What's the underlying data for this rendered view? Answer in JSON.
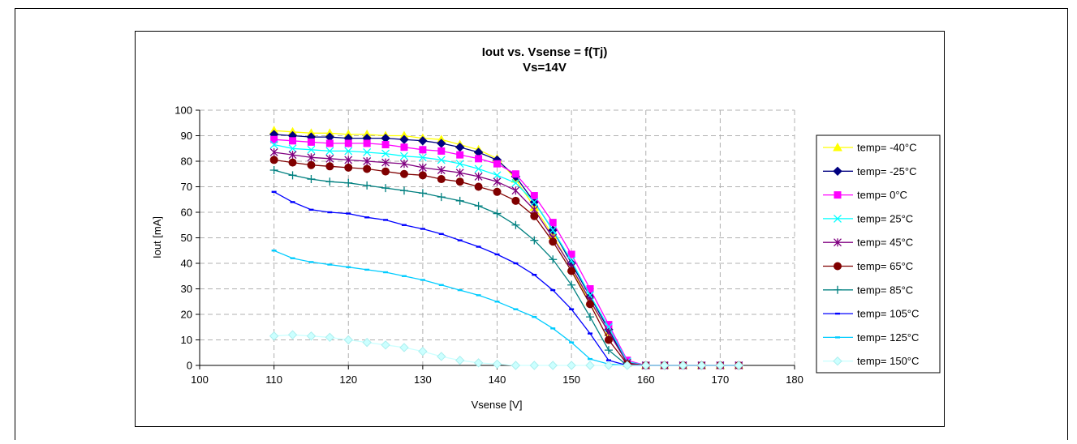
{
  "chart_data": {
    "type": "line",
    "title": "Iout vs. Vsense = f(Tj)",
    "subtitle": "Vs=14V",
    "xlabel": "Vsense [V]",
    "ylabel": "Iout [mA]",
    "xlim": [
      100,
      180
    ],
    "ylim": [
      0,
      100
    ],
    "xticks": [
      100,
      110,
      120,
      130,
      140,
      150,
      160,
      170,
      180
    ],
    "yticks": [
      0,
      10,
      20,
      30,
      40,
      50,
      60,
      70,
      80,
      90,
      100
    ],
    "grid": true,
    "legend_position": "right",
    "x": [
      110,
      112.5,
      115,
      117.5,
      120,
      122.5,
      125,
      127.5,
      130,
      132.5,
      135,
      137.5,
      140,
      142.5,
      145,
      147.5,
      150,
      152.5,
      155,
      157.5,
      160,
      162.5,
      165,
      167.5,
      170,
      172.5
    ],
    "series": [
      {
        "name": "temp= -40°C",
        "color": "#ffff00",
        "marker": "triangle",
        "values": [
          92,
          91.5,
          91,
          91,
          90.5,
          90.5,
          90,
          90,
          89,
          88.5,
          86.5,
          84.5,
          81,
          73,
          62,
          51,
          38,
          25,
          13,
          1,
          0,
          0,
          0,
          0,
          0,
          0
        ]
      },
      {
        "name": "temp= -25°C",
        "color": "#000080",
        "marker": "diamond",
        "values": [
          90.5,
          90,
          89.5,
          89.5,
          89,
          89,
          89,
          88.5,
          88,
          87,
          85.5,
          83.5,
          80.5,
          74,
          64,
          53,
          40,
          27,
          14,
          1,
          0,
          0,
          0,
          0,
          0,
          0
        ]
      },
      {
        "name": "temp= 0°C",
        "color": "#ff00ff",
        "marker": "square",
        "values": [
          88.5,
          88,
          87.5,
          87,
          87,
          87,
          86.5,
          85.5,
          84.5,
          84,
          82.5,
          81,
          79,
          75,
          66.5,
          56,
          43.5,
          30,
          16,
          2,
          0,
          0,
          0,
          0,
          0,
          0
        ]
      },
      {
        "name": "temp= 25°C",
        "color": "#00ffff",
        "marker": "x",
        "values": [
          86.5,
          85,
          84.5,
          84,
          84,
          83.5,
          83,
          82,
          81.5,
          80.5,
          79,
          77,
          74.5,
          71.5,
          64,
          53,
          41,
          27.5,
          15,
          1.5,
          0,
          0,
          0,
          0,
          0,
          0
        ]
      },
      {
        "name": "temp= 45°C",
        "color": "#800080",
        "marker": "star",
        "values": [
          83.5,
          82.5,
          81.5,
          81,
          80.5,
          80,
          79.5,
          79,
          77.5,
          76.5,
          75.5,
          74,
          72,
          68.5,
          61,
          50,
          38.5,
          25.5,
          13,
          1,
          0,
          0,
          0,
          0,
          0,
          0
        ]
      },
      {
        "name": "temp= 65°C",
        "color": "#800000",
        "marker": "circle",
        "values": [
          80.5,
          79.5,
          78.5,
          78,
          77.5,
          77,
          76,
          75,
          74.5,
          73,
          72,
          70,
          68,
          64.5,
          58.5,
          48.5,
          37,
          24,
          10,
          0.5,
          0,
          0,
          0,
          0,
          0,
          0
        ]
      },
      {
        "name": "temp= 85°C",
        "color": "#008080",
        "marker": "plus",
        "values": [
          76.5,
          74.5,
          73,
          72,
          71.5,
          70.5,
          69.5,
          68.5,
          67.5,
          66,
          64.5,
          62.5,
          59.5,
          55,
          49,
          41.5,
          31.5,
          19,
          6,
          0,
          0,
          0,
          0,
          0,
          0,
          0
        ]
      },
      {
        "name": "temp= 105°C",
        "color": "#0000ff",
        "marker": "dash",
        "values": [
          68,
          64,
          61,
          60,
          59.5,
          58,
          57,
          55,
          53.5,
          51.5,
          49,
          46.5,
          43.5,
          40,
          35.5,
          29.5,
          22,
          12.5,
          2,
          0,
          0,
          0,
          0,
          0,
          0,
          0
        ]
      },
      {
        "name": "temp= 125°C",
        "color": "#00ccff",
        "marker": "dash",
        "values": [
          45,
          42,
          40.5,
          39.5,
          38.5,
          37.5,
          36.5,
          35,
          33.5,
          31.5,
          29.5,
          27.5,
          25,
          22,
          19,
          14.5,
          9,
          2.5,
          0.5,
          0,
          0,
          0,
          0,
          0,
          0,
          0
        ]
      },
      {
        "name": "temp= 150°C",
        "color": "#ccffff",
        "marker": "diamond",
        "values": [
          11.5,
          12,
          11.5,
          11,
          10,
          9,
          8,
          7,
          5.5,
          3.5,
          2,
          1,
          0.5,
          0,
          0,
          0,
          0,
          0,
          0,
          0,
          0,
          0,
          0,
          0,
          0,
          0
        ]
      }
    ]
  }
}
